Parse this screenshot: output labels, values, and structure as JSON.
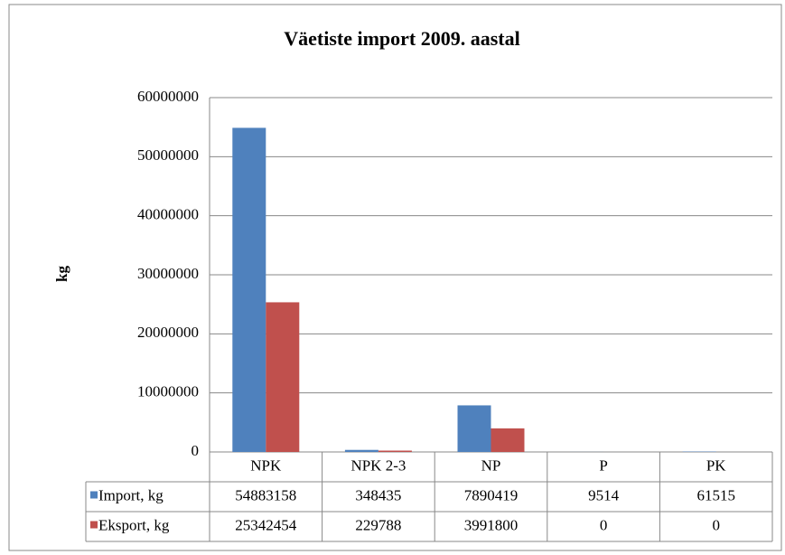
{
  "chart_data": {
    "type": "bar",
    "title": "Väetiste import 2009. aastal",
    "y_label": "kg",
    "categories": [
      "NPK",
      "NPK 2-3",
      "NP",
      "P",
      "PK"
    ],
    "series": [
      {
        "name": "Import, kg",
        "color": "#4f81bd",
        "values": [
          54883158,
          348435,
          7890419,
          9514,
          61515
        ]
      },
      {
        "name": "Eksport, kg",
        "color": "#c0504d",
        "values": [
          25342454,
          229788,
          3991800,
          0,
          0
        ]
      }
    ],
    "ylim": [
      0,
      60000000
    ],
    "yticks": [
      0,
      10000000,
      20000000,
      30000000,
      40000000,
      50000000,
      60000000
    ],
    "grid": true
  }
}
